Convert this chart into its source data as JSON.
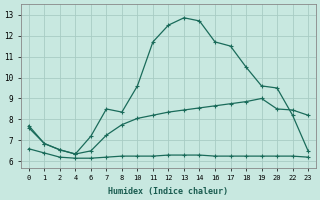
{
  "xlabel": "Humidex (Indice chaleur)",
  "bg_color": "#c8e8e0",
  "line_color": "#1a6b5a",
  "grid_color": "#a8ccc4",
  "xtick_labels": [
    "0",
    "1",
    "2",
    "4",
    "6",
    "7",
    "8",
    "10",
    "11",
    "12",
    "13",
    "14",
    "16",
    "17",
    "18",
    "19",
    "20",
    "22",
    "23"
  ],
  "ytick_labels": [
    "6",
    "7",
    "8",
    "9",
    "10",
    "11",
    "12",
    "13"
  ],
  "ylim": [
    5.7,
    13.5
  ],
  "n_xticks": 19,
  "line1_y": [
    7.6,
    6.85,
    6.55,
    6.35,
    7.2,
    8.5,
    8.35,
    9.6,
    11.7,
    12.5,
    12.85,
    12.7,
    11.7,
    11.5,
    10.5,
    9.6,
    9.5,
    8.2,
    6.5
  ],
  "line2_y": [
    7.7,
    6.85,
    6.55,
    6.35,
    6.5,
    7.25,
    7.75,
    8.05,
    8.2,
    8.35,
    8.45,
    8.55,
    8.65,
    8.75,
    8.85,
    9.0,
    8.5,
    8.45,
    8.2
  ],
  "line3_y": [
    6.6,
    6.4,
    6.2,
    6.15,
    6.15,
    6.2,
    6.25,
    6.25,
    6.25,
    6.3,
    6.3,
    6.3,
    6.25,
    6.25,
    6.25,
    6.25,
    6.25,
    6.25,
    6.2
  ]
}
